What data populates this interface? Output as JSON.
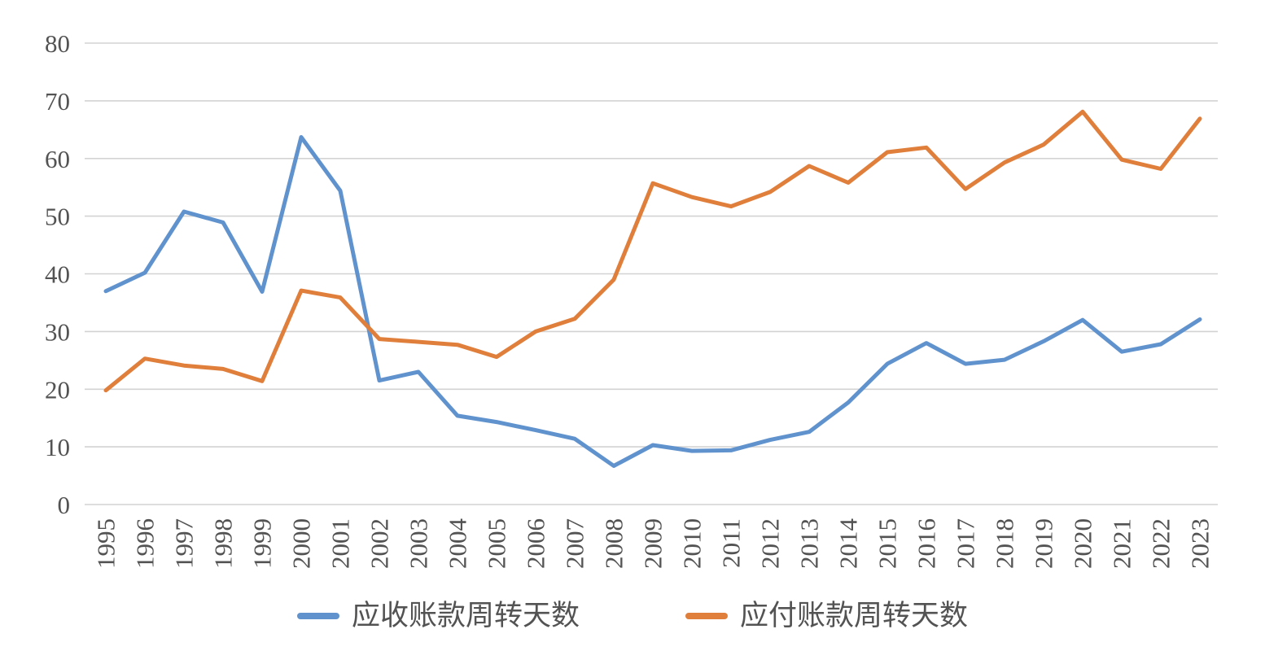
{
  "chart_data": {
    "type": "line",
    "title": "",
    "xlabel": "",
    "ylabel": "",
    "categories": [
      "1995",
      "1996",
      "1997",
      "1998",
      "1999",
      "2000",
      "2001",
      "2002",
      "2003",
      "2004",
      "2005",
      "2006",
      "2007",
      "2008",
      "2009",
      "2010",
      "2011",
      "2012",
      "2013",
      "2014",
      "2015",
      "2016",
      "2017",
      "2018",
      "2019",
      "2020",
      "2021",
      "2022",
      "2023"
    ],
    "series": [
      {
        "name": "应收账款周转天数",
        "color": "#6093CE",
        "values": [
          37.0,
          40.2,
          50.8,
          48.9,
          36.9,
          63.7,
          54.4,
          21.5,
          23.0,
          15.4,
          14.3,
          12.9,
          11.4,
          6.7,
          10.3,
          9.3,
          9.4,
          11.2,
          12.6,
          17.7,
          24.4,
          28.0,
          24.4,
          25.1,
          28.3,
          32.0,
          26.5,
          27.8,
          32.1
        ]
      },
      {
        "name": "应付账款周转天数",
        "color": "#E07F3C",
        "values": [
          19.8,
          25.3,
          24.1,
          23.5,
          21.4,
          37.1,
          35.9,
          28.7,
          28.2,
          27.7,
          25.6,
          30.0,
          32.2,
          39.0,
          55.7,
          53.3,
          51.7,
          54.2,
          58.7,
          55.8,
          61.1,
          61.9,
          54.7,
          59.3,
          62.4,
          68.1,
          59.8,
          58.2,
          66.9
        ]
      }
    ],
    "ylim": [
      0,
      80
    ],
    "yticks": [
      0,
      10,
      20,
      30,
      40,
      50,
      60,
      70,
      80
    ],
    "grid": true,
    "gridline_color": "#D3D3D3",
    "axis_text_color": "#535353",
    "legend_position": "bottom"
  }
}
